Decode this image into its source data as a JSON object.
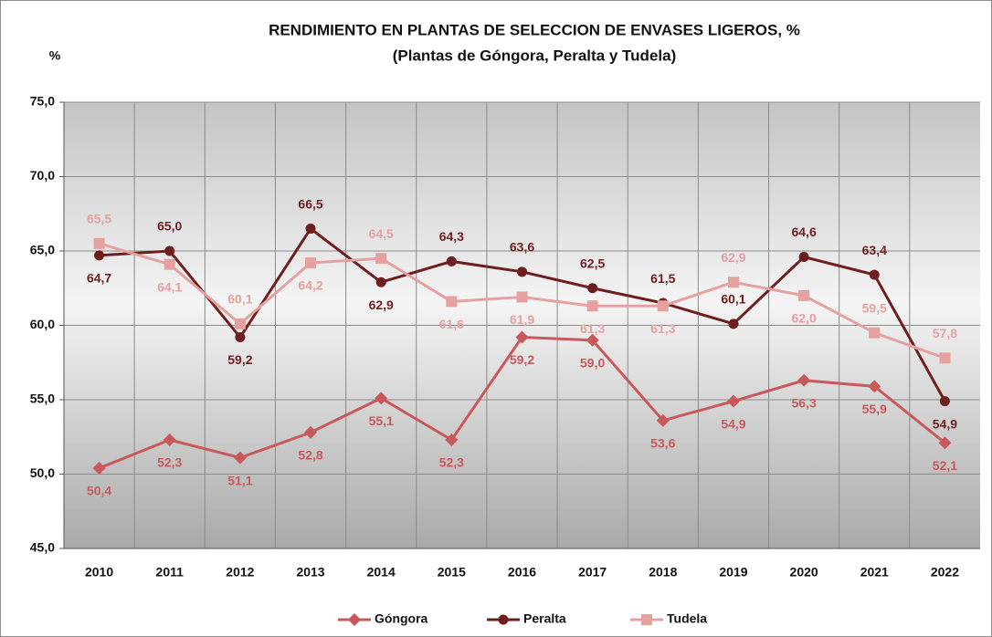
{
  "chart_data": {
    "type": "line",
    "title": "RENDIMIENTO EN PLANTAS DE SELECCION  DE ENVASES LIGEROS, %",
    "subtitle": "(Plantas de Góngora, Peralta y Tudela)",
    "y_label": "%",
    "categories": [
      "2010",
      "2011",
      "2012",
      "2013",
      "2014",
      "2015",
      "2016",
      "2017",
      "2018",
      "2019",
      "2020",
      "2021",
      "2022"
    ],
    "series": [
      {
        "name": "Góngora",
        "color": "#c9585a",
        "marker": "diamond",
        "values": [
          50.4,
          52.3,
          51.1,
          52.8,
          55.1,
          52.3,
          59.2,
          59.0,
          53.6,
          54.9,
          56.3,
          55.9,
          52.1
        ],
        "value_labels": [
          "50,4",
          "52,3",
          "51,1",
          "52,8",
          "55,1",
          "52,3",
          "59,2",
          "59,0",
          "53,6",
          "54,9",
          "56,3",
          "55,9",
          "52,1"
        ]
      },
      {
        "name": "Peralta",
        "color": "#6e1e1e",
        "marker": "circle",
        "values": [
          64.7,
          65.0,
          59.2,
          66.5,
          62.9,
          64.3,
          63.6,
          62.5,
          61.5,
          60.1,
          64.6,
          63.4,
          54.9
        ],
        "value_labels": [
          "64,7",
          "65,0",
          "59,2",
          "66,5",
          "62,9",
          "64,3",
          "63,6",
          "62,5",
          "61,5",
          "60,1",
          "64,6",
          "63,4",
          "54,9"
        ]
      },
      {
        "name": "Tudela",
        "color": "#e5a0a0",
        "marker": "square",
        "values": [
          65.5,
          64.1,
          60.1,
          64.2,
          64.5,
          61.6,
          61.9,
          61.3,
          61.3,
          62.9,
          62.0,
          59.5,
          57.8
        ],
        "value_labels": [
          "65,5",
          "64,1",
          "60,1",
          "64,2",
          "64,5",
          "61,6",
          "61,9",
          "61,3",
          "61,3",
          "62,9",
          "62,0",
          "59,5",
          "57,8"
        ]
      }
    ],
    "ylim": [
      45,
      75
    ],
    "yticks": [
      {
        "value": 45,
        "label": "45,0"
      },
      {
        "value": 50,
        "label": "50,0"
      },
      {
        "value": 55,
        "label": "55,0"
      },
      {
        "value": 60,
        "label": "60,0"
      },
      {
        "value": 65,
        "label": "65,0"
      },
      {
        "value": 70,
        "label": "70,0"
      },
      {
        "value": 75,
        "label": "75,0"
      }
    ],
    "grid": true,
    "legend": "bottom"
  }
}
